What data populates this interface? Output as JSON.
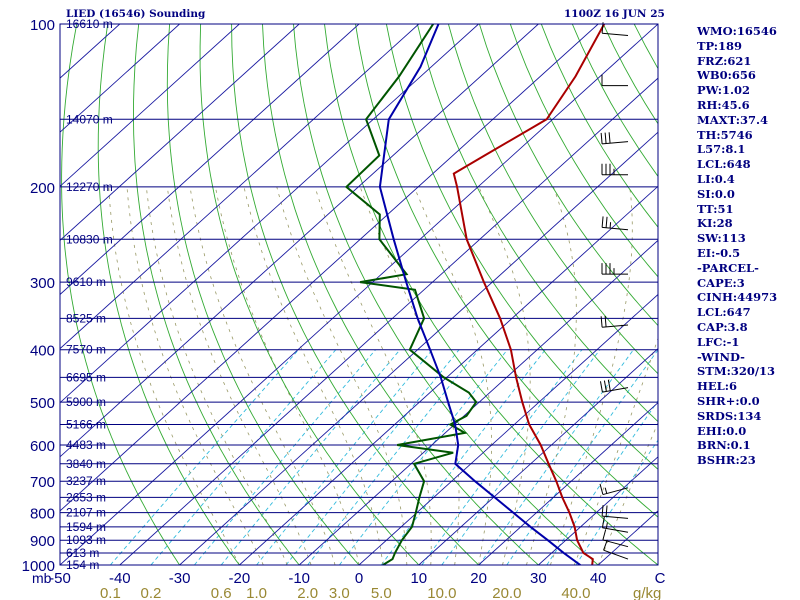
{
  "header": {
    "station": "LIED (16546) Sounding",
    "time": "1100Z 16 JUN 25"
  },
  "indices": [
    "WMO:16546",
    "TP:189",
    "FRZ:621",
    "WB0:656",
    "PW:1.02",
    "RH:45.6",
    "MAXT:37.4",
    "TH:5746",
    "L57:8.1",
    "LCL:648",
    "LI:0.4",
    "SI:0.0",
    "TT:51",
    "KI:28",
    "SW:113",
    "EI:-0.5",
    "-PARCEL-",
    "CAPE:3",
    "CINH:44973",
    "LCL:647",
    "CAP:3.8",
    "LFC:-1",
    "-WIND-",
    "STM:320/13",
    "HEL:6",
    "SHR+:0.0",
    "SRDS:134",
    "EHI:0.0",
    "BRN:0.1",
    "BSHR:23"
  ],
  "colors": {
    "background": "#ffffff",
    "text": "#000080",
    "isobar": "#000080",
    "isotherm": "#1a1aa0",
    "dry_adiabat": "#33aa33",
    "mixing_ratio": "#33bbdd",
    "moist_adiabat": "#999966",
    "temperature": "#aa0000",
    "dewpoint": "#005500",
    "parcel": "#0000aa",
    "wind": "#000000"
  },
  "chart_data": {
    "type": "skew-t log-p",
    "pressure_axis": {
      "unit": "mb",
      "labels": [
        100,
        200,
        300,
        400,
        500,
        600,
        700,
        800,
        900,
        1000
      ],
      "range": [
        100,
        1000
      ],
      "scale": "log"
    },
    "heights_m": [
      {
        "p": 100,
        "label": "16610 m"
      },
      {
        "p": 150,
        "label": "14070 m"
      },
      {
        "p": 200,
        "label": "12270 m"
      },
      {
        "p": 250,
        "label": "10830 m"
      },
      {
        "p": 300,
        "label": "9610 m"
      },
      {
        "p": 350,
        "label": "8525 m"
      },
      {
        "p": 400,
        "label": "7570 m"
      },
      {
        "p": 450,
        "label": "6695 m"
      },
      {
        "p": 500,
        "label": "5900 m"
      },
      {
        "p": 550,
        "label": "5166 m"
      },
      {
        "p": 600,
        "label": "4483 m"
      },
      {
        "p": 650,
        "label": "3840 m"
      },
      {
        "p": 700,
        "label": "3237 m"
      },
      {
        "p": 750,
        "label": "2653 m"
      },
      {
        "p": 800,
        "label": "2107 m"
      },
      {
        "p": 850,
        "label": "1594 m"
      },
      {
        "p": 900,
        "label": "1093 m"
      },
      {
        "p": 950,
        "label": "613 m"
      },
      {
        "p": 1000,
        "label": "154 m"
      }
    ],
    "temp_axis": {
      "unit": "C",
      "labels": [
        "-50",
        "-40",
        "-30",
        "-20",
        "-10",
        "0",
        "10",
        "20",
        "30",
        "40"
      ],
      "values": [
        -50,
        -40,
        -30,
        -20,
        -10,
        0,
        10,
        20,
        30,
        40
      ],
      "range": [
        -50,
        50
      ],
      "axis_letter": "C"
    },
    "mixing_ratio_axis": {
      "unit": "g/kg",
      "labels": [
        "0.1",
        "0.2",
        "0.6",
        "1.0",
        "2.0",
        "3.0",
        "5.0",
        "10.0",
        "20.0",
        "40.0"
      ],
      "values": [
        0.1,
        0.2,
        0.6,
        1.0,
        2.0,
        3.0,
        5.0,
        10.0,
        20.0,
        40.0
      ]
    },
    "series": [
      {
        "name": "temperature",
        "points": [
          {
            "p": 1000,
            "t": 39.0
          },
          {
            "p": 975,
            "t": 38.0
          },
          {
            "p": 950,
            "t": 35.3
          },
          {
            "p": 900,
            "t": 31.9
          },
          {
            "p": 850,
            "t": 29.0
          },
          {
            "p": 800,
            "t": 25.5
          },
          {
            "p": 750,
            "t": 21.5
          },
          {
            "p": 700,
            "t": 17.5
          },
          {
            "p": 650,
            "t": 13.0
          },
          {
            "p": 600,
            "t": 8.2
          },
          {
            "p": 550,
            "t": 2.5
          },
          {
            "p": 500,
            "t": -2.8
          },
          {
            "p": 450,
            "t": -8.4
          },
          {
            "p": 400,
            "t": -14.4
          },
          {
            "p": 350,
            "t": -22.0
          },
          {
            "p": 300,
            "t": -31.4
          },
          {
            "p": 250,
            "t": -42.2
          },
          {
            "p": 200,
            "t": -53.5
          },
          {
            "p": 189,
            "t": -56.5
          },
          {
            "p": 175,
            "t": -54.7
          },
          {
            "p": 150,
            "t": -51.0
          },
          {
            "p": 125,
            "t": -54.1
          },
          {
            "p": 100,
            "t": -59.0
          }
        ]
      },
      {
        "name": "dewpoint",
        "points": [
          {
            "p": 1000,
            "t": 4.0
          },
          {
            "p": 975,
            "t": 4.5
          },
          {
            "p": 950,
            "t": 3.8
          },
          {
            "p": 900,
            "t": 2.6
          },
          {
            "p": 850,
            "t": 1.8
          },
          {
            "p": 800,
            "t": -0.2
          },
          {
            "p": 750,
            "t": -2.4
          },
          {
            "p": 700,
            "t": -4.6
          },
          {
            "p": 650,
            "t": -9.5
          },
          {
            "p": 620,
            "t": -5.0
          },
          {
            "p": 600,
            "t": -15.8
          },
          {
            "p": 570,
            "t": -6.7
          },
          {
            "p": 550,
            "t": -10.7
          },
          {
            "p": 530,
            "t": -9.6
          },
          {
            "p": 500,
            "t": -10.5
          },
          {
            "p": 480,
            "t": -13.5
          },
          {
            "p": 450,
            "t": -20.5
          },
          {
            "p": 400,
            "t": -31.3
          },
          {
            "p": 350,
            "t": -34.7
          },
          {
            "p": 310,
            "t": -41.5
          },
          {
            "p": 300,
            "t": -52.1
          },
          {
            "p": 290,
            "t": -45.8
          },
          {
            "p": 250,
            "t": -56.8
          },
          {
            "p": 225,
            "t": -61.3
          },
          {
            "p": 200,
            "t": -72.0
          },
          {
            "p": 175,
            "t": -72.3
          },
          {
            "p": 150,
            "t": -81.2
          },
          {
            "p": 125,
            "t": -83.6
          },
          {
            "p": 100,
            "t": -87.6
          }
        ]
      },
      {
        "name": "parcel",
        "points": [
          {
            "p": 1000,
            "t": 37.0
          },
          {
            "p": 950,
            "t": 32.0
          },
          {
            "p": 900,
            "t": 27.0
          },
          {
            "p": 850,
            "t": 21.6
          },
          {
            "p": 800,
            "t": 16.1
          },
          {
            "p": 750,
            "t": 10.2
          },
          {
            "p": 700,
            "t": 3.9
          },
          {
            "p": 650,
            "t": -2.6
          },
          {
            "p": 600,
            "t": -5.6
          },
          {
            "p": 550,
            "t": -9.9
          },
          {
            "p": 500,
            "t": -15.2
          },
          {
            "p": 450,
            "t": -21.0
          },
          {
            "p": 400,
            "t": -27.9
          },
          {
            "p": 350,
            "t": -35.8
          },
          {
            "p": 300,
            "t": -44.4
          },
          {
            "p": 250,
            "t": -54.4
          },
          {
            "p": 200,
            "t": -66.4
          },
          {
            "p": 150,
            "t": -77.4
          },
          {
            "p": 120,
            "t": -81.8
          },
          {
            "p": 100,
            "t": -86.7
          }
        ]
      }
    ],
    "wind_barbs": [
      {
        "p": 975,
        "dir": 290,
        "kt": 10
      },
      {
        "p": 925,
        "dir": 285,
        "kt": 10
      },
      {
        "p": 870,
        "dir": 280,
        "kt": 15
      },
      {
        "p": 820,
        "dir": 275,
        "kt": 20
      },
      {
        "p": 720,
        "dir": 255,
        "kt": 15
      },
      {
        "p": 470,
        "dir": 260,
        "kt": 30
      },
      {
        "p": 360,
        "dir": 265,
        "kt": 20
      },
      {
        "p": 290,
        "dir": 270,
        "kt": 35
      },
      {
        "p": 240,
        "dir": 275,
        "kt": 25
      },
      {
        "p": 190,
        "dir": 270,
        "kt": 35
      },
      {
        "p": 165,
        "dir": 265,
        "kt": 30
      },
      {
        "p": 130,
        "dir": 270,
        "kt": 10
      },
      {
        "p": 105,
        "dir": 275,
        "kt": 10
      }
    ],
    "grid": true
  }
}
